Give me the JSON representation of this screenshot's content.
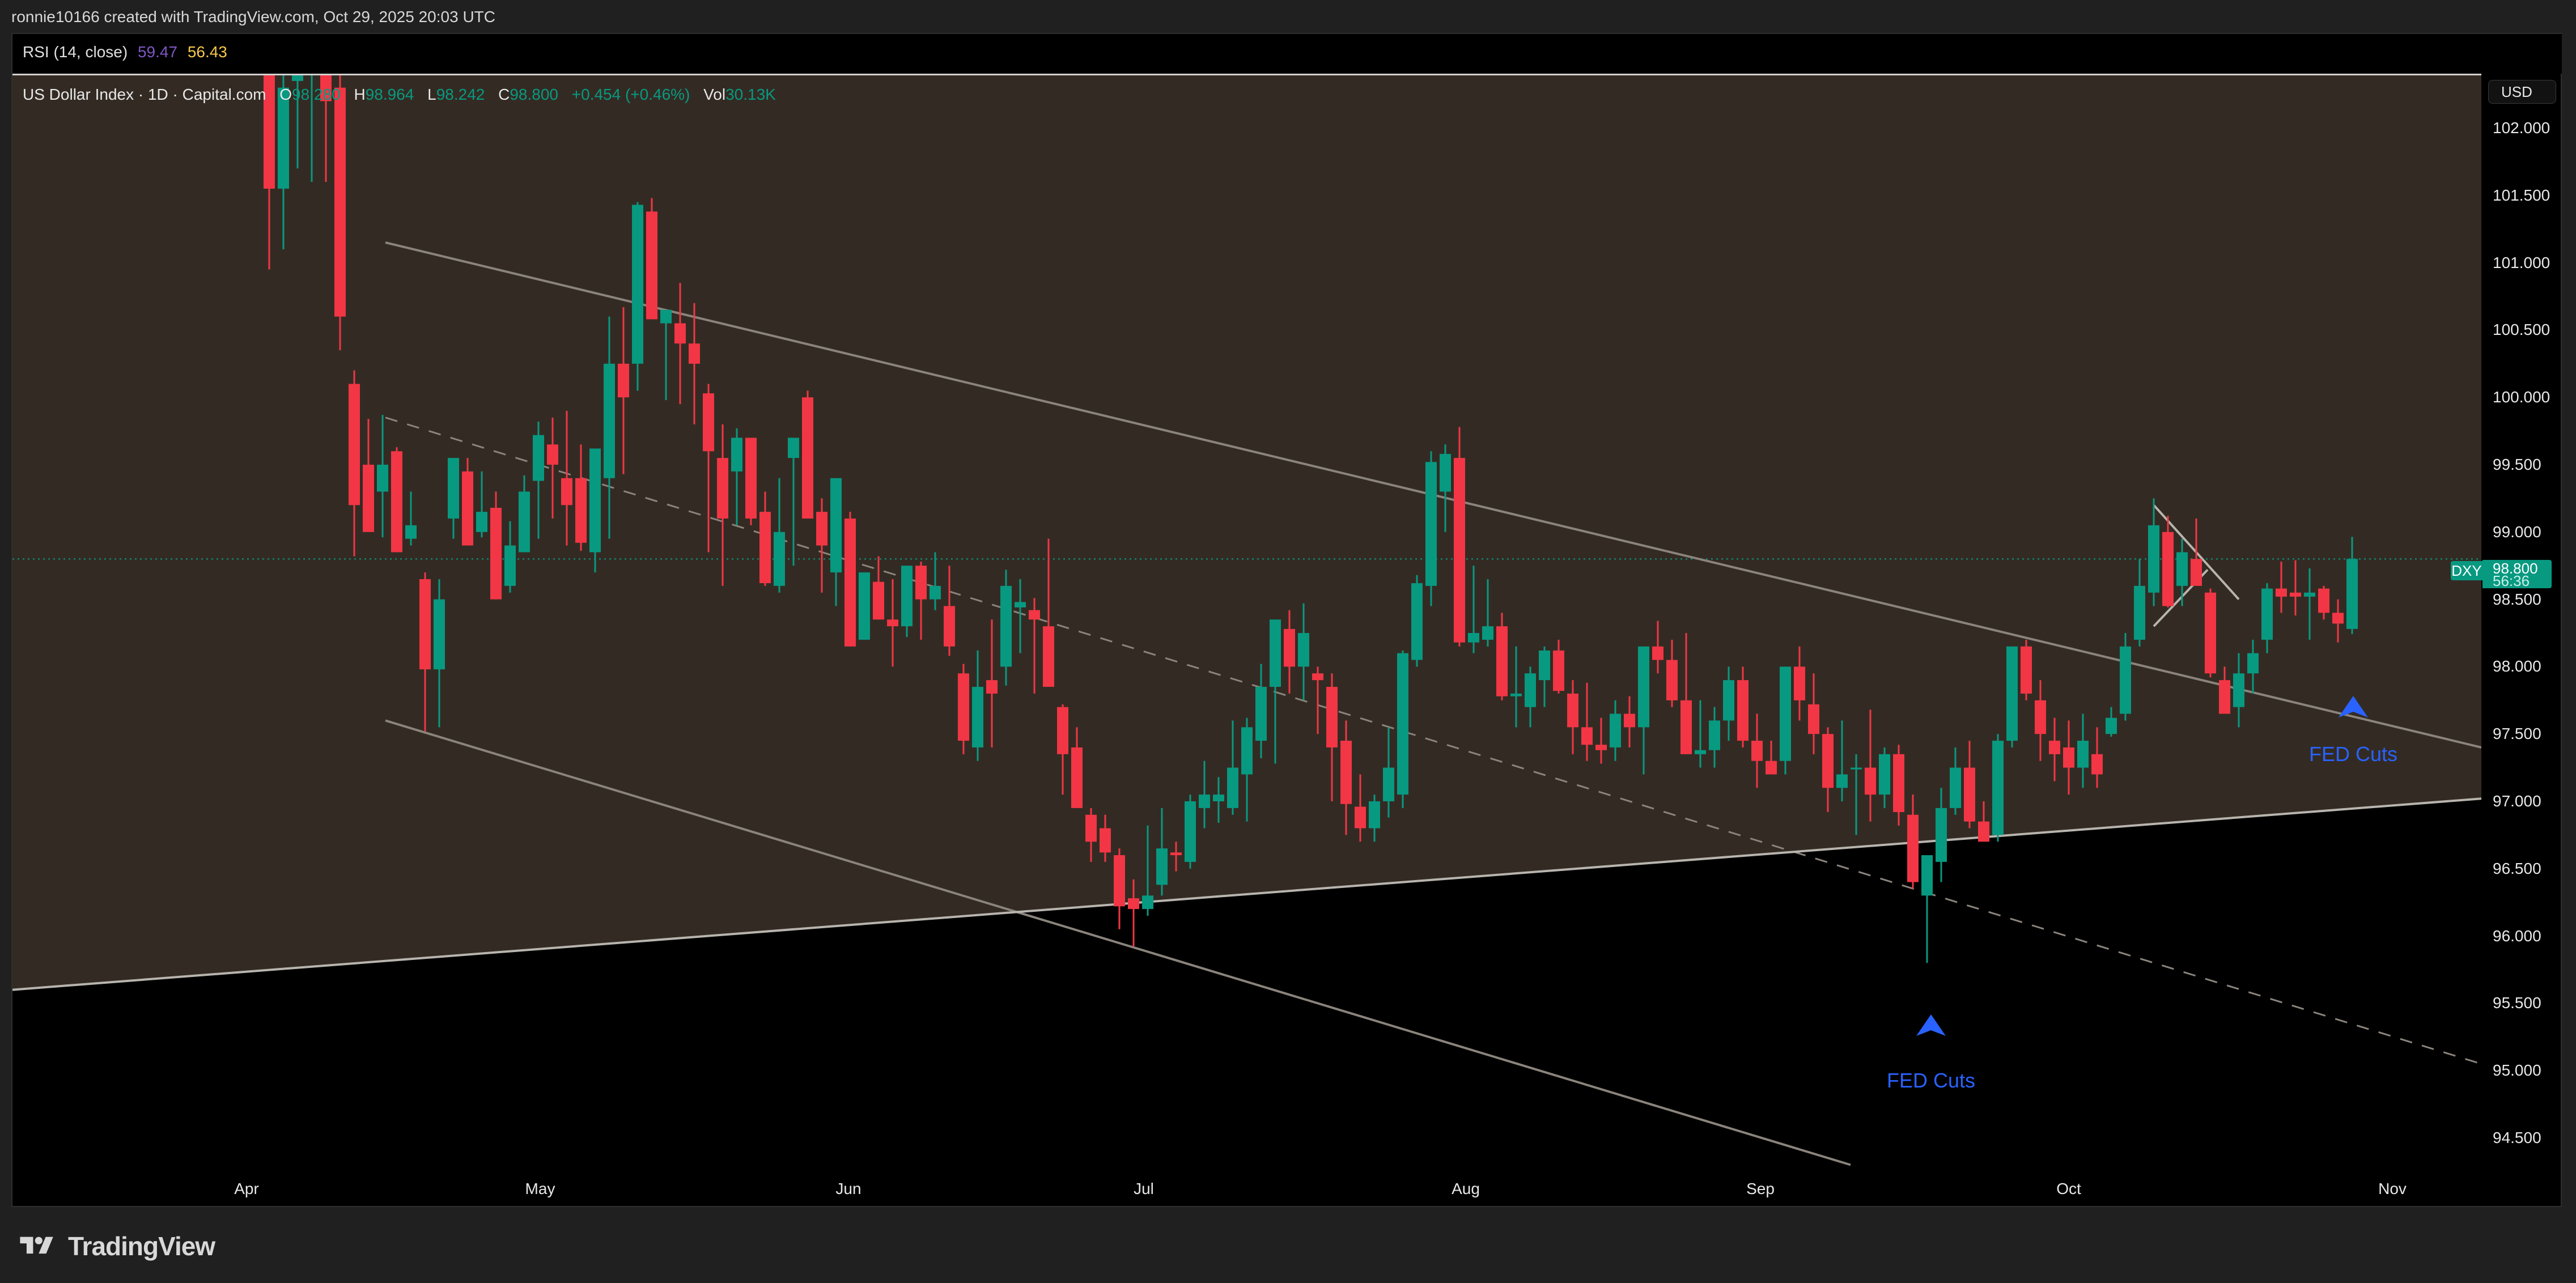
{
  "header": {
    "credit": "ronnie10166 created with TradingView.com, Oct 29, 2025 20:03 UTC"
  },
  "rsi": {
    "label": "RSI (14, close)",
    "value1": "59.47",
    "value2": "56.43",
    "value1_color": "#7e57c2",
    "value2_color": "#f7c948"
  },
  "legend": {
    "symbol": "US Dollar Index · 1D · Capital.com",
    "o_label": "O",
    "o_value": "98.280",
    "h_label": "H",
    "h_value": "98.964",
    "l_label": "L",
    "l_value": "98.242",
    "c_label": "C",
    "c_value": "98.800",
    "change": "+0.454 (+0.46%)",
    "vol_label": "Vol",
    "vol_value": "30.13K"
  },
  "price_axis": {
    "currency_button": "USD",
    "ticks": [
      "102.000",
      "101.500",
      "101.000",
      "100.500",
      "100.000",
      "99.500",
      "99.000",
      "98.500",
      "98.000",
      "97.500",
      "97.000",
      "96.500",
      "96.000",
      "95.500",
      "95.000",
      "94.500"
    ]
  },
  "last_price": {
    "symbol": "DXY",
    "price": "98.800",
    "countdown": "56:36"
  },
  "time_axis": {
    "ticks": [
      "Apr",
      "May",
      "Jun",
      "Jul",
      "Aug",
      "Sep",
      "Oct",
      "Nov"
    ]
  },
  "annotations": [
    {
      "label": "FED Cuts",
      "icon": "arrow-up-icon"
    },
    {
      "label": "FED Cuts",
      "icon": "arrow-up-icon"
    }
  ],
  "brand": {
    "name": "TradingView"
  },
  "colors": {
    "up": "#089981",
    "down": "#f23645",
    "annotation": "#2962ff",
    "channel_fill": "#332b23",
    "trendline": "#8a847c"
  },
  "chart_data": {
    "type": "candlestick",
    "title": "US Dollar Index · 1D · Capital.com",
    "xlabel": "",
    "ylabel": "USD",
    "ylim": [
      94.2,
      102.4
    ],
    "x_ticks": [
      "Apr",
      "May",
      "Jun",
      "Jul",
      "Aug",
      "Sep",
      "Oct",
      "Nov"
    ],
    "y_ticks": [
      102.0,
      101.5,
      101.0,
      100.5,
      100.0,
      99.5,
      99.0,
      98.5,
      98.0,
      97.5,
      97.0,
      96.5,
      96.0,
      95.5,
      95.0,
      94.5
    ],
    "last": {
      "open": 98.28,
      "high": 98.964,
      "low": 98.242,
      "close": 98.8,
      "change": 0.454,
      "change_pct": 0.46,
      "volume": "30.13K"
    },
    "indicator": {
      "name": "RSI (14, close)",
      "values": [
        59.47,
        56.43
      ]
    },
    "grid": false,
    "annotations": [
      {
        "text": "FED Cuts",
        "date": "Sep 17",
        "price": 95.55,
        "marker": "up-arrow"
      },
      {
        "text": "FED Cuts",
        "date": "Oct 29",
        "price": 97.95,
        "marker": "up-arrow"
      }
    ],
    "drawings": [
      {
        "type": "trendline",
        "name": "upper-channel",
        "from": [
          "Apr 15",
          101.2
        ],
        "to": [
          "Oct 31",
          97.3
        ]
      },
      {
        "type": "trendline",
        "name": "lower-channel",
        "from": [
          "Apr 15",
          97.6
        ],
        "to": [
          "Sep 15",
          94.4
        ]
      },
      {
        "type": "trendline",
        "name": "dashed-mid-channel",
        "from": [
          "Apr 15",
          99.85
        ],
        "to": [
          "Nov 5",
          95.05
        ],
        "style": "dashed"
      },
      {
        "type": "trendline",
        "name": "rising-support",
        "from": [
          "Mar 20",
          95.6
        ],
        "to": [
          "Nov 5",
          97.0
        ]
      }
    ],
    "candles": [
      {
        "o": 102.6,
        "h": 102.9,
        "l": 100.95,
        "c": 101.55
      },
      {
        "o": 101.55,
        "h": 102.55,
        "l": 101.1,
        "c": 102.3
      },
      {
        "o": 102.35,
        "h": 102.6,
        "l": 101.7,
        "c": 102.5
      },
      {
        "o": 102.4,
        "h": 102.6,
        "l": 101.6,
        "c": 102.5
      },
      {
        "o": 102.5,
        "h": 102.7,
        "l": 101.6,
        "c": 102.2
      },
      {
        "o": 102.3,
        "h": 102.5,
        "l": 100.35,
        "c": 100.6
      },
      {
        "o": 100.1,
        "h": 100.2,
        "l": 98.82,
        "c": 99.2
      },
      {
        "o": 99.5,
        "h": 99.84,
        "l": 99.0,
        "c": 99.0
      },
      {
        "o": 99.3,
        "h": 99.87,
        "l": 98.96,
        "c": 99.5
      },
      {
        "o": 99.6,
        "h": 99.63,
        "l": 98.85,
        "c": 98.85
      },
      {
        "o": 98.95,
        "h": 99.3,
        "l": 98.9,
        "c": 99.05
      },
      {
        "o": 98.65,
        "h": 98.7,
        "l": 97.52,
        "c": 97.98
      },
      {
        "o": 97.98,
        "h": 98.65,
        "l": 97.55,
        "c": 98.5
      },
      {
        "o": 99.1,
        "h": 99.18,
        "l": 98.95,
        "c": 99.55
      },
      {
        "o": 99.45,
        "h": 99.55,
        "l": 98.95,
        "c": 98.9
      },
      {
        "o": 99.0,
        "h": 99.45,
        "l": 98.96,
        "c": 99.15
      },
      {
        "o": 99.18,
        "h": 99.3,
        "l": 98.5,
        "c": 98.5
      },
      {
        "o": 98.6,
        "h": 99.08,
        "l": 98.55,
        "c": 98.9
      },
      {
        "o": 98.85,
        "h": 99.42,
        "l": 98.85,
        "c": 99.3
      },
      {
        "o": 99.38,
        "h": 99.82,
        "l": 98.95,
        "c": 99.72
      },
      {
        "o": 99.65,
        "h": 99.85,
        "l": 99.1,
        "c": 99.5
      },
      {
        "o": 99.4,
        "h": 99.9,
        "l": 98.9,
        "c": 99.2
      },
      {
        "o": 99.4,
        "h": 99.65,
        "l": 98.86,
        "c": 98.92
      },
      {
        "o": 98.85,
        "h": 99.55,
        "l": 98.7,
        "c": 99.62
      },
      {
        "o": 99.4,
        "h": 100.6,
        "l": 98.95,
        "c": 100.25
      },
      {
        "o": 100.25,
        "h": 100.67,
        "l": 99.43,
        "c": 100.0
      },
      {
        "o": 100.25,
        "h": 101.45,
        "l": 100.05,
        "c": 101.43
      },
      {
        "o": 101.38,
        "h": 101.48,
        "l": 100.62,
        "c": 100.58
      },
      {
        "o": 100.55,
        "h": 100.62,
        "l": 99.98,
        "c": 100.65
      },
      {
        "o": 100.55,
        "h": 100.85,
        "l": 99.95,
        "c": 100.4
      },
      {
        "o": 100.4,
        "h": 100.7,
        "l": 99.8,
        "c": 100.25
      },
      {
        "o": 100.03,
        "h": 100.1,
        "l": 98.85,
        "c": 99.6
      },
      {
        "o": 99.55,
        "h": 99.8,
        "l": 98.6,
        "c": 99.1
      },
      {
        "o": 99.45,
        "h": 99.77,
        "l": 99.05,
        "c": 99.7
      },
      {
        "o": 99.7,
        "h": 99.7,
        "l": 99.05,
        "c": 99.1
      },
      {
        "o": 99.15,
        "h": 99.3,
        "l": 98.6,
        "c": 98.62
      },
      {
        "o": 98.6,
        "h": 99.4,
        "l": 98.55,
        "c": 99.0
      },
      {
        "o": 99.55,
        "h": 99.6,
        "l": 98.75,
        "c": 99.7
      },
      {
        "o": 100.0,
        "h": 100.05,
        "l": 99.15,
        "c": 99.1
      },
      {
        "o": 99.15,
        "h": 99.25,
        "l": 98.55,
        "c": 98.9
      },
      {
        "o": 98.7,
        "h": 99.05,
        "l": 98.45,
        "c": 99.4
      },
      {
        "o": 99.1,
        "h": 99.15,
        "l": 98.15,
        "c": 98.15
      },
      {
        "o": 98.2,
        "h": 98.7,
        "l": 98.2,
        "c": 98.7
      },
      {
        "o": 98.63,
        "h": 98.82,
        "l": 98.35,
        "c": 98.35
      },
      {
        "o": 98.35,
        "h": 98.65,
        "l": 98.0,
        "c": 98.3
      },
      {
        "o": 98.3,
        "h": 98.73,
        "l": 98.22,
        "c": 98.75
      },
      {
        "o": 98.75,
        "h": 98.78,
        "l": 98.2,
        "c": 98.5
      },
      {
        "o": 98.5,
        "h": 98.85,
        "l": 98.42,
        "c": 98.6
      },
      {
        "o": 98.45,
        "h": 98.75,
        "l": 98.08,
        "c": 98.15
      },
      {
        "o": 97.95,
        "h": 98.02,
        "l": 97.35,
        "c": 97.45
      },
      {
        "o": 97.4,
        "h": 98.12,
        "l": 97.3,
        "c": 97.85
      },
      {
        "o": 97.9,
        "h": 98.35,
        "l": 97.4,
        "c": 97.8
      },
      {
        "o": 98.0,
        "h": 98.72,
        "l": 97.86,
        "c": 98.6
      },
      {
        "o": 98.44,
        "h": 98.65,
        "l": 98.1,
        "c": 98.48
      },
      {
        "o": 98.42,
        "h": 98.51,
        "l": 97.8,
        "c": 98.35
      },
      {
        "o": 98.3,
        "h": 98.95,
        "l": 98.15,
        "c": 97.85
      },
      {
        "o": 97.7,
        "h": 97.72,
        "l": 97.05,
        "c": 97.35
      },
      {
        "o": 97.4,
        "h": 97.55,
        "l": 97.15,
        "c": 96.95
      },
      {
        "o": 96.9,
        "h": 96.95,
        "l": 96.55,
        "c": 96.7
      },
      {
        "o": 96.8,
        "h": 96.9,
        "l": 96.55,
        "c": 96.62
      },
      {
        "o": 96.6,
        "h": 96.65,
        "l": 96.05,
        "c": 96.22
      },
      {
        "o": 96.28,
        "h": 96.42,
        "l": 95.92,
        "c": 96.2
      },
      {
        "o": 96.2,
        "h": 96.82,
        "l": 96.15,
        "c": 96.3
      },
      {
        "o": 96.38,
        "h": 96.95,
        "l": 96.3,
        "c": 96.65
      },
      {
        "o": 96.62,
        "h": 96.7,
        "l": 96.48,
        "c": 96.6
      },
      {
        "o": 96.55,
        "h": 97.05,
        "l": 96.5,
        "c": 97.0
      },
      {
        "o": 96.95,
        "h": 97.3,
        "l": 96.8,
        "c": 97.05
      },
      {
        "o": 97.0,
        "h": 97.18,
        "l": 96.84,
        "c": 97.05
      },
      {
        "o": 96.95,
        "h": 97.6,
        "l": 96.9,
        "c": 97.25
      },
      {
        "o": 97.2,
        "h": 97.62,
        "l": 96.85,
        "c": 97.55
      },
      {
        "o": 97.45,
        "h": 98.02,
        "l": 97.32,
        "c": 97.85
      },
      {
        "o": 97.85,
        "h": 98.35,
        "l": 97.28,
        "c": 98.35
      },
      {
        "o": 98.28,
        "h": 98.42,
        "l": 97.8,
        "c": 98.0
      },
      {
        "o": 98.0,
        "h": 98.47,
        "l": 97.75,
        "c": 98.25
      },
      {
        "o": 97.95,
        "h": 98.0,
        "l": 97.5,
        "c": 97.9
      },
      {
        "o": 97.85,
        "h": 97.95,
        "l": 97.0,
        "c": 97.4
      },
      {
        "o": 97.45,
        "h": 97.6,
        "l": 96.75,
        "c": 96.98
      },
      {
        "o": 96.96,
        "h": 97.2,
        "l": 96.7,
        "c": 96.8
      },
      {
        "o": 96.8,
        "h": 97.05,
        "l": 96.7,
        "c": 97.0
      },
      {
        "o": 97.0,
        "h": 97.55,
        "l": 96.88,
        "c": 97.25
      },
      {
        "o": 97.05,
        "h": 98.12,
        "l": 96.95,
        "c": 98.1
      },
      {
        "o": 98.05,
        "h": 98.68,
        "l": 98.0,
        "c": 98.62
      },
      {
        "o": 98.6,
        "h": 99.6,
        "l": 98.45,
        "c": 99.52
      },
      {
        "o": 99.3,
        "h": 99.65,
        "l": 99.0,
        "c": 99.58
      },
      {
        "o": 99.55,
        "h": 99.78,
        "l": 98.15,
        "c": 98.18
      },
      {
        "o": 98.18,
        "h": 98.75,
        "l": 98.1,
        "c": 98.25
      },
      {
        "o": 98.2,
        "h": 98.65,
        "l": 98.15,
        "c": 98.3
      },
      {
        "o": 98.3,
        "h": 98.4,
        "l": 97.75,
        "c": 97.78
      },
      {
        "o": 97.78,
        "h": 98.15,
        "l": 97.55,
        "c": 97.8
      },
      {
        "o": 97.7,
        "h": 98.0,
        "l": 97.55,
        "c": 97.95
      },
      {
        "o": 97.9,
        "h": 98.15,
        "l": 97.7,
        "c": 98.12
      },
      {
        "o": 98.12,
        "h": 98.2,
        "l": 97.8,
        "c": 97.82
      },
      {
        "o": 97.8,
        "h": 97.9,
        "l": 97.35,
        "c": 97.55
      },
      {
        "o": 97.55,
        "h": 97.88,
        "l": 97.3,
        "c": 97.42
      },
      {
        "o": 97.42,
        "h": 97.62,
        "l": 97.28,
        "c": 97.38
      },
      {
        "o": 97.4,
        "h": 97.75,
        "l": 97.3,
        "c": 97.65
      },
      {
        "o": 97.65,
        "h": 97.78,
        "l": 97.4,
        "c": 97.55
      },
      {
        "o": 97.55,
        "h": 97.9,
        "l": 97.2,
        "c": 98.15
      },
      {
        "o": 98.15,
        "h": 98.34,
        "l": 97.95,
        "c": 98.05
      },
      {
        "o": 98.05,
        "h": 98.2,
        "l": 97.7,
        "c": 97.75
      },
      {
        "o": 97.75,
        "h": 98.25,
        "l": 97.35,
        "c": 97.35
      },
      {
        "o": 97.35,
        "h": 97.75,
        "l": 97.25,
        "c": 97.38
      },
      {
        "o": 97.38,
        "h": 97.7,
        "l": 97.25,
        "c": 97.6
      },
      {
        "o": 97.6,
        "h": 98.0,
        "l": 97.45,
        "c": 97.9
      },
      {
        "o": 97.9,
        "h": 98.0,
        "l": 97.4,
        "c": 97.45
      },
      {
        "o": 97.45,
        "h": 97.65,
        "l": 97.1,
        "c": 97.3
      },
      {
        "o": 97.3,
        "h": 97.45,
        "l": 97.2,
        "c": 97.2
      },
      {
        "o": 97.3,
        "h": 98.0,
        "l": 97.2,
        "c": 98.0
      },
      {
        "o": 98.0,
        "h": 98.15,
        "l": 97.6,
        "c": 97.75
      },
      {
        "o": 97.72,
        "h": 97.95,
        "l": 97.35,
        "c": 97.5
      },
      {
        "o": 97.5,
        "h": 97.55,
        "l": 96.92,
        "c": 97.1
      },
      {
        "o": 97.1,
        "h": 97.6,
        "l": 97.0,
        "c": 97.2
      },
      {
        "o": 97.25,
        "h": 97.35,
        "l": 96.75,
        "c": 97.25
      },
      {
        "o": 97.25,
        "h": 97.68,
        "l": 96.85,
        "c": 97.05
      },
      {
        "o": 97.05,
        "h": 97.4,
        "l": 96.95,
        "c": 97.35
      },
      {
        "o": 97.35,
        "h": 97.42,
        "l": 96.82,
        "c": 96.92
      },
      {
        "o": 96.9,
        "h": 97.05,
        "l": 96.35,
        "c": 96.4
      },
      {
        "o": 96.3,
        "h": 96.58,
        "l": 95.8,
        "c": 96.6
      },
      {
        "o": 96.55,
        "h": 97.1,
        "l": 96.4,
        "c": 96.95
      },
      {
        "o": 96.95,
        "h": 97.4,
        "l": 96.9,
        "c": 97.25
      },
      {
        "o": 97.25,
        "h": 97.45,
        "l": 96.8,
        "c": 96.85
      },
      {
        "o": 96.85,
        "h": 97.0,
        "l": 96.72,
        "c": 96.7
      },
      {
        "o": 96.75,
        "h": 97.5,
        "l": 96.7,
        "c": 97.45
      },
      {
        "o": 97.45,
        "h": 98.15,
        "l": 97.4,
        "c": 98.15
      },
      {
        "o": 98.15,
        "h": 98.2,
        "l": 97.75,
        "c": 97.8
      },
      {
        "o": 97.75,
        "h": 97.9,
        "l": 97.3,
        "c": 97.5
      },
      {
        "o": 97.45,
        "h": 97.62,
        "l": 97.15,
        "c": 97.35
      },
      {
        "o": 97.4,
        "h": 97.6,
        "l": 97.05,
        "c": 97.25
      },
      {
        "o": 97.25,
        "h": 97.65,
        "l": 97.1,
        "c": 97.45
      },
      {
        "o": 97.35,
        "h": 97.55,
        "l": 97.1,
        "c": 97.2
      },
      {
        "o": 97.5,
        "h": 97.7,
        "l": 97.48,
        "c": 97.62
      },
      {
        "o": 97.65,
        "h": 98.25,
        "l": 97.6,
        "c": 98.15
      },
      {
        "o": 98.2,
        "h": 98.8,
        "l": 98.15,
        "c": 98.6
      },
      {
        "o": 98.55,
        "h": 99.25,
        "l": 98.45,
        "c": 99.05
      },
      {
        "o": 99.0,
        "h": 99.12,
        "l": 98.44,
        "c": 98.45
      },
      {
        "o": 98.6,
        "h": 98.95,
        "l": 98.45,
        "c": 98.85
      },
      {
        "o": 98.8,
        "h": 99.1,
        "l": 98.65,
        "c": 98.6
      },
      {
        "o": 98.55,
        "h": 98.58,
        "l": 97.92,
        "c": 97.95
      },
      {
        "o": 97.9,
        "h": 98.0,
        "l": 97.65,
        "c": 97.65
      },
      {
        "o": 97.7,
        "h": 98.1,
        "l": 97.55,
        "c": 97.95
      },
      {
        "o": 97.95,
        "h": 98.2,
        "l": 97.8,
        "c": 98.1
      },
      {
        "o": 98.2,
        "h": 98.62,
        "l": 98.1,
        "c": 98.58
      },
      {
        "o": 98.58,
        "h": 98.78,
        "l": 98.4,
        "c": 98.52
      },
      {
        "o": 98.55,
        "h": 98.79,
        "l": 98.38,
        "c": 98.52
      },
      {
        "o": 98.52,
        "h": 98.73,
        "l": 98.2,
        "c": 98.55
      },
      {
        "o": 98.58,
        "h": 98.6,
        "l": 98.35,
        "c": 98.4
      },
      {
        "o": 98.4,
        "h": 98.5,
        "l": 98.18,
        "c": 98.32
      },
      {
        "o": 98.28,
        "h": 98.964,
        "l": 98.242,
        "c": 98.8
      }
    ]
  }
}
